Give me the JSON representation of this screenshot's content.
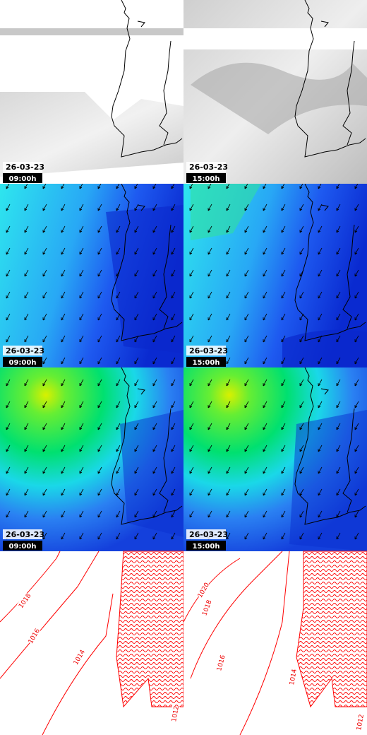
{
  "panels": [
    {
      "date": "26-03-23",
      "time": "09:00h"
    },
    {
      "date": "26-03-23",
      "time": "15:00h"
    },
    {
      "date": "26-03-23",
      "time": "09:00h"
    },
    {
      "date": "26-03-23",
      "time": "15:00h"
    },
    {
      "date": "26-03-23",
      "time": "09:00h"
    },
    {
      "date": "26-03-23",
      "time": "15:00h"
    }
  ],
  "isobar_panels": [
    {
      "labels": [
        "1018",
        "1016",
        "1014",
        "1012"
      ]
    },
    {
      "labels": [
        "1020",
        "1018",
        "1016",
        "1014",
        "1012"
      ]
    }
  ]
}
